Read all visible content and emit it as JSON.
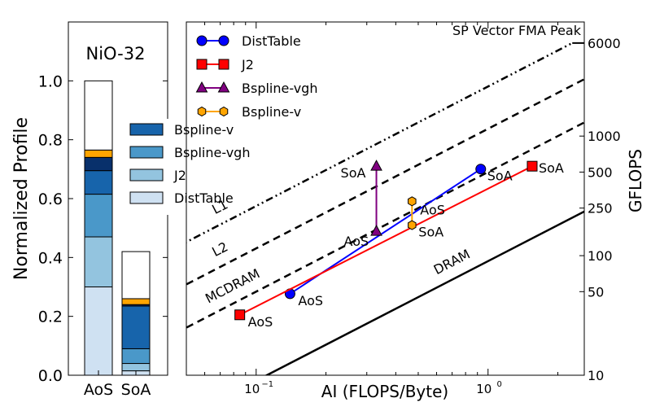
{
  "chart_data": [
    {
      "type": "bar",
      "stacked": true,
      "title": "NiO-32",
      "ylabel": "Normalized Profile",
      "xlabel": "",
      "categories": [
        "AoS",
        "SoA"
      ],
      "ylim": [
        0,
        1.2
      ],
      "yticks": [
        0.0,
        0.2,
        0.4,
        0.6,
        0.8,
        1.0
      ],
      "ytick_labels": [
        "0.0",
        "0.2",
        "0.4",
        "0.6",
        "0.8",
        "1.0"
      ],
      "series": [
        {
          "name": "DistTable",
          "color": "#cfe1f2",
          "values": [
            0.3,
            0.015
          ],
          "in_legend": true
        },
        {
          "name": "J2",
          "color": "#93c4df",
          "values": [
            0.17,
            0.025
          ],
          "in_legend": true
        },
        {
          "name": "Bspline-vgh",
          "color": "#4a98c9",
          "values": [
            0.145,
            0.05
          ],
          "in_legend": true
        },
        {
          "name": "Bspline-v",
          "color": "#1764ab",
          "values": [
            0.08,
            0.145
          ],
          "in_legend": true
        },
        {
          "name": "Other (dark navy)",
          "color": "#08306b",
          "values": [
            0.045,
            0.005
          ],
          "in_legend": false
        },
        {
          "name": "Other (orange)",
          "color": "#ffa500",
          "values": [
            0.025,
            0.02
          ],
          "in_legend": false
        },
        {
          "name": "Other (white)",
          "color": "#ffffff",
          "values": [
            0.235,
            0.16
          ],
          "in_legend": false
        }
      ],
      "legend_order": [
        "Bspline-v",
        "Bspline-vgh",
        "J2",
        "DistTable"
      ]
    },
    {
      "type": "line",
      "subtype": "roofline",
      "xlabel": "AI (FLOPS/Byte)",
      "ylabel": "GFLOPS",
      "xscale": "log",
      "yscale": "log",
      "xlim": [
        0.05,
        2.6
      ],
      "ylim": [
        10,
        9000
      ],
      "xticks": [
        {
          "value": 0.1,
          "base": "10",
          "exp": "−1"
        },
        {
          "value": 1.0,
          "base": "10",
          "exp": "0"
        }
      ],
      "yticks": [
        10,
        50,
        100,
        250,
        500,
        1000,
        6000
      ],
      "ytick_labels": [
        "10",
        "50",
        "100",
        "250",
        "500",
        "1000",
        "6000"
      ],
      "ceilings": [
        {
          "name": "SP Vector FMA Peak",
          "kind": "flat",
          "value": 6000,
          "style": "solid"
        },
        {
          "name": "L1",
          "kind": "bandwidth",
          "bandwidth": 2600,
          "style": "dashdot",
          "label_at_x": 0.075,
          "label_offset_gflops": 1.0
        },
        {
          "name": "L2",
          "kind": "bandwidth",
          "bandwidth": 1150,
          "style": "dashed",
          "label_at_x": 0.075,
          "label_offset_gflops": 1.0
        },
        {
          "name": "MCDRAM",
          "kind": "bandwidth",
          "bandwidth": 500,
          "style": "dashed",
          "label_at_x": 0.085,
          "label_offset_gflops": 1.0
        },
        {
          "name": "DRAM",
          "kind": "bandwidth",
          "bandwidth": 90,
          "style": "solid",
          "label_at_x": 0.75,
          "label_offset_gflops": 1.0
        }
      ],
      "series": [
        {
          "name": "DistTable",
          "color": "#0000ff",
          "marker": "circle",
          "points": [
            {
              "x": 0.14,
              "y": 48,
              "label": "AoS"
            },
            {
              "x": 0.93,
              "y": 530,
              "label": "SoA"
            }
          ]
        },
        {
          "name": "J2",
          "color": "#ff0000",
          "marker": "square",
          "points": [
            {
              "x": 0.085,
              "y": 32,
              "label": "AoS"
            },
            {
              "x": 1.55,
              "y": 560,
              "label": "SoA"
            }
          ]
        },
        {
          "name": "Bspline-vgh",
          "color": "#800080",
          "marker": "triangle",
          "points": [
            {
              "x": 0.33,
              "y": 160,
              "label": "AoS"
            },
            {
              "x": 0.33,
              "y": 560,
              "label": "SoA"
            }
          ]
        },
        {
          "name": "Bspline-v",
          "color": "#ffa500",
          "marker": "hexagon",
          "points": [
            {
              "x": 0.47,
              "y": 285,
              "label": "AoS"
            },
            {
              "x": 0.47,
              "y": 180,
              "label": "SoA"
            }
          ]
        }
      ]
    }
  ]
}
